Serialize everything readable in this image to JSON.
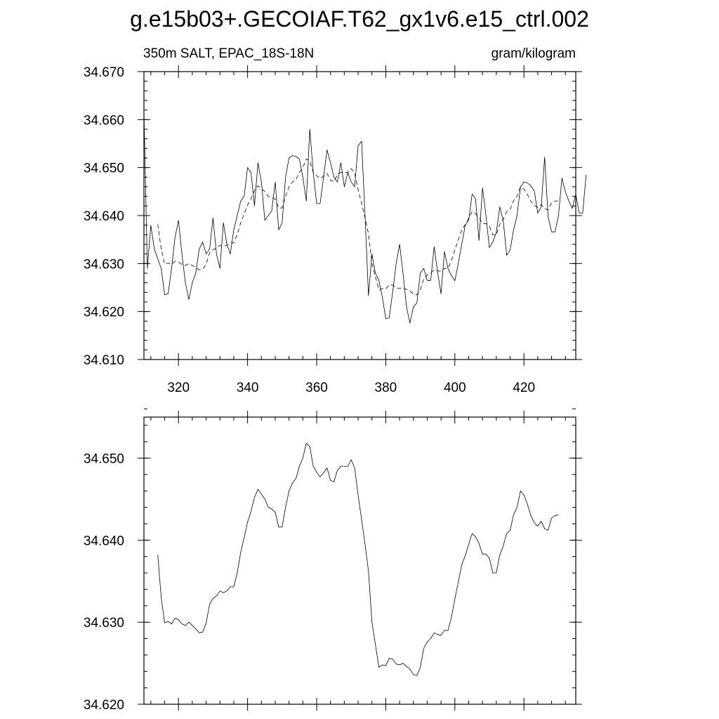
{
  "title": "g.e15b03+.GECOIAF.T62_gx1v6.e15_ctrl.002",
  "subtitle_left": "350m SALT, EPAC_18S-18N",
  "subtitle_right": "gram/kilogram",
  "chart_data": [
    {
      "type": "line",
      "xlim": [
        310,
        435
      ],
      "ylim": [
        34.61,
        34.67
      ],
      "x_ticks": [
        320,
        340,
        360,
        380,
        400,
        420
      ],
      "x_tick_labels": [
        "320",
        "340",
        "360",
        "380",
        "400",
        "420"
      ],
      "y_ticks": [
        34.61,
        34.62,
        34.63,
        34.64,
        34.65,
        34.66,
        34.67
      ],
      "y_tick_labels": [
        "34.610",
        "34.620",
        "34.630",
        "34.640",
        "34.650",
        "34.660",
        "34.670"
      ],
      "grid": false,
      "legend": "none",
      "series": [
        {
          "style": "solid",
          "x_start": 310,
          "x_step": 1,
          "values": [
            34.6615,
            34.629,
            34.638,
            34.633,
            34.631,
            34.629,
            34.6235,
            34.6237,
            34.629,
            34.6355,
            34.639,
            34.632,
            34.626,
            34.6225,
            34.626,
            34.628,
            34.633,
            34.6345,
            34.632,
            34.633,
            34.6395,
            34.632,
            34.629,
            34.6385,
            34.634,
            34.632,
            34.637,
            34.64,
            34.643,
            34.644,
            34.65,
            34.649,
            34.642,
            34.651,
            34.647,
            34.639,
            34.64,
            34.641,
            34.647,
            34.637,
            34.6385,
            34.648,
            34.652,
            34.6525,
            34.6523,
            34.6518,
            34.648,
            34.643,
            34.658,
            34.649,
            34.6425,
            34.6425,
            34.648,
            34.6537,
            34.651,
            34.648,
            34.647,
            34.651,
            34.646,
            34.649,
            34.647,
            34.646,
            34.6545,
            34.6555,
            34.64,
            34.6233,
            34.632,
            34.628,
            34.6265,
            34.623,
            34.6185,
            34.6187,
            34.624,
            34.63,
            34.634,
            34.628,
            34.621,
            34.6176,
            34.621,
            34.6218,
            34.628,
            34.629,
            34.6265,
            34.6265,
            34.6335,
            34.6283,
            34.6237,
            34.6325,
            34.629,
            34.6275,
            34.6264,
            34.63,
            34.634,
            34.638,
            34.639,
            34.6445,
            34.6435,
            34.6348,
            34.6458,
            34.64,
            34.6333,
            34.6345,
            34.6365,
            34.6418,
            34.639,
            34.6317,
            34.6328,
            34.637,
            34.64,
            34.646,
            34.647,
            34.6468,
            34.6462,
            34.6451,
            34.6405,
            34.6418,
            34.6522,
            34.6398,
            34.6366,
            34.6366,
            34.64,
            34.6478,
            34.645,
            34.643,
            34.6415,
            34.6445,
            34.6405,
            34.6405,
            34.6485
          ]
        },
        {
          "style": "dashed",
          "x_start": 314,
          "x_step": 1,
          "values": [
            34.6382,
            34.633,
            34.6299,
            34.6301,
            34.6298,
            34.6305,
            34.6303,
            34.6298,
            34.6296,
            34.63,
            34.6296,
            34.6292,
            34.6287,
            34.6288,
            34.6299,
            34.6322,
            34.6329,
            34.6332,
            34.6338,
            34.6336,
            34.6338,
            34.6343,
            34.6343,
            34.636,
            34.6385,
            34.6403,
            34.6422,
            34.6435,
            34.6452,
            34.6462,
            34.6456,
            34.645,
            34.644,
            34.6438,
            34.6434,
            34.6416,
            34.6416,
            34.644,
            34.646,
            34.647,
            34.6475,
            34.649,
            34.65,
            34.6518,
            34.6514,
            34.649,
            34.6483,
            34.6477,
            34.6482,
            34.6488,
            34.6473,
            34.6471,
            34.6485,
            34.649,
            34.649,
            34.649,
            34.6498,
            34.6488,
            34.6455,
            34.6425,
            34.6395,
            34.6362,
            34.63,
            34.6273,
            34.6245,
            34.6248,
            34.6247,
            34.6256,
            34.6255,
            34.6249,
            34.6248,
            34.625,
            34.6246,
            34.6243,
            34.6236,
            34.6235,
            34.6245,
            34.6268,
            34.6276,
            34.628,
            34.6287,
            34.6285,
            34.6284,
            34.629,
            34.629,
            34.6306,
            34.6328,
            34.6349,
            34.637,
            34.6381,
            34.6395,
            34.6408,
            34.6404,
            34.6396,
            34.6383,
            34.6383,
            34.6378,
            34.636,
            34.636,
            34.6382,
            34.6393,
            34.6408,
            34.6412,
            34.6431,
            34.644,
            34.646,
            34.6455,
            34.6444,
            34.643,
            34.6421,
            34.6417,
            34.6423,
            34.6414,
            34.6412,
            34.6427,
            34.643,
            34.6431
          ]
        }
      ]
    },
    {
      "type": "line",
      "xlim": [
        310,
        435
      ],
      "ylim": [
        34.62,
        34.655
      ],
      "x_ticks": [
        320,
        340,
        360,
        380,
        400,
        420
      ],
      "y_ticks": [
        34.62,
        34.63,
        34.64,
        34.65
      ],
      "y_tick_labels": [
        "34.620",
        "34.630",
        "34.640",
        "34.650"
      ],
      "grid": false,
      "legend": "none",
      "series": [
        {
          "style": "solid",
          "from": "chart_data.0.series.1"
        }
      ]
    }
  ]
}
